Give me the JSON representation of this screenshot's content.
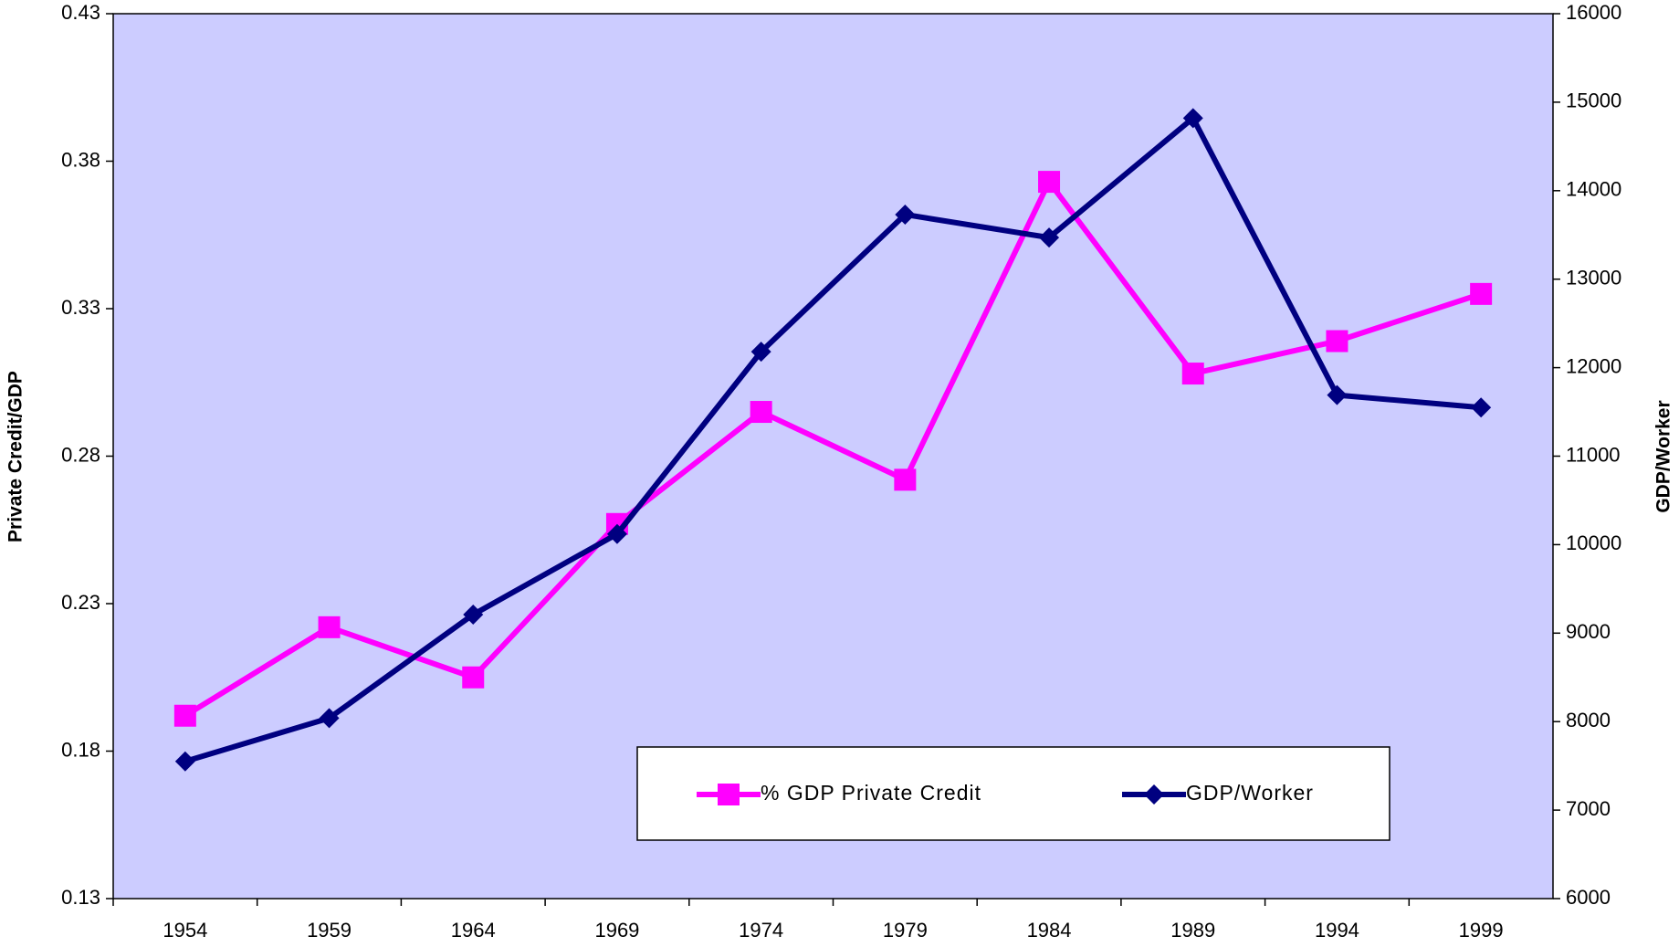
{
  "chart_data": {
    "type": "line",
    "categories": [
      "1954",
      "1959",
      "1964",
      "1969",
      "1974",
      "1979",
      "1984",
      "1989",
      "1994",
      "1999"
    ],
    "series": [
      {
        "name": "% GDP Private Credit",
        "color": "#ff00ff",
        "marker": "square",
        "values": [
          0.192,
          0.222,
          0.205,
          0.257,
          0.295,
          0.272,
          0.373,
          0.308,
          0.319,
          0.335
        ]
      },
      {
        "name": "GDP/Worker",
        "color": "#000080",
        "marker": "diamond",
        "axis": "y2",
        "values": [
          7550,
          8040,
          9210,
          10120,
          12180,
          13730,
          13470,
          14820,
          11690,
          11550
        ]
      }
    ],
    "ylabel": "Private Credit/GDP",
    "y2label": "GDP/Worker",
    "ylim": [
      0.13,
      0.43
    ],
    "yticks": [
      0.13,
      0.18,
      0.23,
      0.28,
      0.33,
      0.38,
      0.43
    ],
    "y2lim": [
      6000,
      16000
    ],
    "y2ticks": [
      6000,
      7000,
      8000,
      9000,
      10000,
      11000,
      12000,
      13000,
      14000,
      15000,
      16000
    ],
    "background": "#ccccff"
  }
}
